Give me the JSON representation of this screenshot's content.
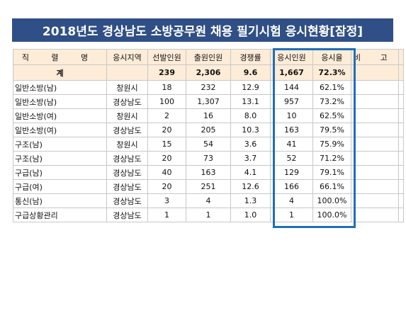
{
  "title": "2018년도 경상남도 소방공무원 채용 필기시험 응시현황[잠정]",
  "headers": [
    "직 렬 명",
    "응시지역",
    "선발인원",
    "출원인원",
    "경쟁률",
    "응시인원",
    "응시율",
    "비 고"
  ],
  "total": {
    "position": "계",
    "region": "",
    "selected": "239",
    "applicants": "2,306",
    "ratio": "9.6",
    "examinees": "1,667",
    "rate": "72.3%",
    "note": ""
  },
  "rows": [
    {
      "position": "일반소방(남)",
      "region": "창원시",
      "selected": "18",
      "applicants": "232",
      "ratio": "12.9",
      "examinees": "144",
      "rate": "62.1%",
      "note": ""
    },
    {
      "position": "일반소방(남)",
      "region": "경상남도",
      "selected": "100",
      "applicants": "1,307",
      "ratio": "13.1",
      "examinees": "957",
      "rate": "73.2%",
      "note": ""
    },
    {
      "position": "일반소방(여)",
      "region": "창원시",
      "selected": "2",
      "applicants": "16",
      "ratio": "8.0",
      "examinees": "10",
      "rate": "62.5%",
      "note": ""
    },
    {
      "position": "일반소방(여)",
      "region": "경상남도",
      "selected": "20",
      "applicants": "205",
      "ratio": "10.3",
      "examinees": "163",
      "rate": "79.5%",
      "note": ""
    },
    {
      "position": "구조(남)",
      "region": "창원시",
      "selected": "15",
      "applicants": "54",
      "ratio": "3.6",
      "examinees": "41",
      "rate": "75.9%",
      "note": ""
    },
    {
      "position": "구조(남)",
      "region": "경상남도",
      "selected": "20",
      "applicants": "73",
      "ratio": "3.7",
      "examinees": "52",
      "rate": "71.2%",
      "note": ""
    },
    {
      "position": "구급(남)",
      "region": "경상남도",
      "selected": "40",
      "applicants": "163",
      "ratio": "4.1",
      "examinees": "129",
      "rate": "79.1%",
      "note": ""
    },
    {
      "position": "구급(여)",
      "region": "경상남도",
      "selected": "20",
      "applicants": "251",
      "ratio": "12.6",
      "examinees": "166",
      "rate": "66.1%",
      "note": ""
    },
    {
      "position": "통신(남)",
      "region": "경상남도",
      "selected": "3",
      "applicants": "4",
      "ratio": "1.3",
      "examinees": "4",
      "rate": "100.0%",
      "note": ""
    },
    {
      "position": "구급상황관리",
      "region": "경상남도",
      "selected": "1",
      "applicants": "1",
      "ratio": "1.0",
      "examinees": "1",
      "rate": "100.0%",
      "note": ""
    }
  ],
  "colors": {
    "title_bg": "#2f4f86",
    "title_text": "#ffffff",
    "header_bg": "#fdecd8",
    "highlight_border": "#1f6fba",
    "grid_line": "#c8c8c8"
  }
}
